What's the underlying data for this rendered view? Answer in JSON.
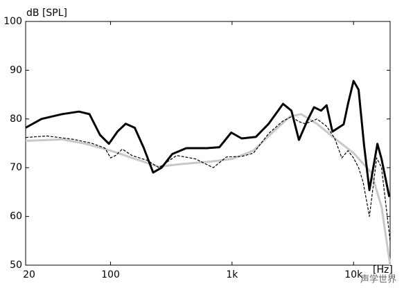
{
  "chart_data": {
    "type": "line",
    "ylabel": "dB [SPL]",
    "xlabel": "[Hz]",
    "xscale": "log",
    "xlim": [
      20,
      20000
    ],
    "ylim": [
      50,
      100
    ],
    "xticks": [
      20,
      100,
      {
        "value": 1000,
        "label": "1k"
      },
      {
        "value": 10000,
        "label": "10k"
      }
    ],
    "yticks": [
      50,
      60,
      70,
      80,
      90,
      100
    ],
    "grid": false,
    "watermark": "声学世界",
    "series": [
      {
        "color": "#000000",
        "style": "solid",
        "width": 3,
        "x": [
          20,
          27,
          40,
          55,
          67,
          82,
          97,
          114,
          133,
          158,
          188,
          224,
          263,
          322,
          420,
          620,
          788,
          985,
          1200,
          1570,
          2000,
          2630,
          3080,
          3550,
          4150,
          4730,
          5400,
          6000,
          6700,
          8300,
          9000,
          10000,
          11000,
          12200,
          13500,
          15700,
          17000,
          19700
        ],
        "values": [
          78.2,
          80,
          81,
          81.5,
          81,
          76.7,
          74.9,
          77.4,
          79,
          78.2,
          74,
          69,
          70,
          72.8,
          74,
          74,
          74.2,
          77.2,
          76,
          76.3,
          79,
          83.1,
          81.7,
          75.7,
          79.6,
          82.4,
          81.7,
          82.8,
          77.4,
          78.9,
          83.1,
          87.8,
          86,
          74.6,
          65.4,
          74.9,
          71.8,
          64
        ]
      },
      {
        "color": "#000000",
        "style": "dashed",
        "width": 1.2,
        "x": [
          20,
          30,
          50,
          70,
          90,
          100,
          110,
          125,
          150,
          200,
          250,
          350,
          500,
          700,
          900,
          1200,
          1500,
          2000,
          2600,
          3100,
          3500,
          4000,
          4500,
          5000,
          6000,
          7000,
          8000,
          9000,
          10000,
          11000,
          12000,
          13500,
          15500,
          17000,
          20000
        ],
        "values": [
          76.2,
          76.5,
          75.8,
          75,
          74,
          72,
          72.5,
          73.8,
          72.5,
          71.5,
          70,
          72.5,
          71.8,
          70,
          72.2,
          72.3,
          73,
          77,
          79.5,
          80.5,
          79.5,
          79,
          79.5,
          80,
          78.5,
          76,
          72,
          73.5,
          72,
          70,
          67,
          60,
          72,
          70,
          55
        ]
      },
      {
        "color": "#c8c8c8",
        "style": "solid",
        "width": 3,
        "x": [
          20,
          40,
          60,
          100,
          150,
          250,
          400,
          700,
          1000,
          1500,
          2000,
          3000,
          3700,
          5000,
          7000,
          10000,
          14000,
          17000,
          20000
        ],
        "values": [
          75.5,
          75.8,
          75,
          73.5,
          72,
          70.2,
          70.8,
          71.3,
          71.8,
          73.5,
          76.5,
          80.5,
          81,
          79,
          76,
          73,
          69,
          62,
          50
        ]
      }
    ]
  }
}
